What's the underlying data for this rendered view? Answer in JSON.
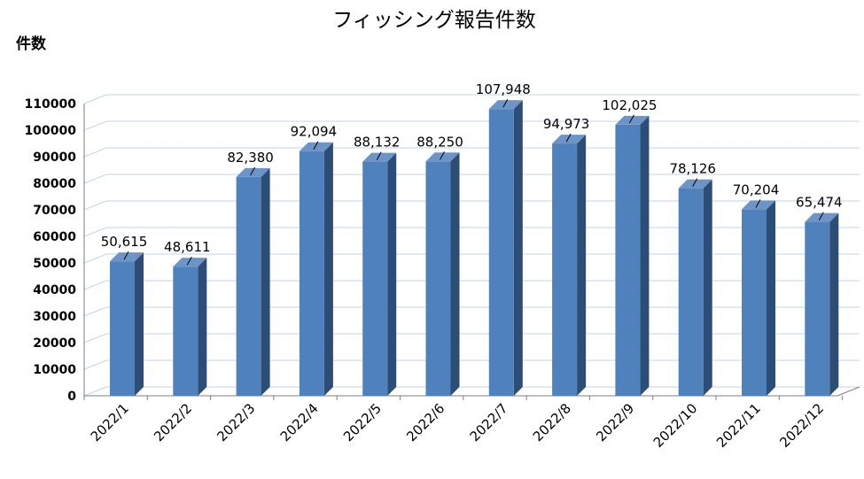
{
  "chart_data": {
    "type": "bar",
    "title": "フィッシング報告件数",
    "ylabel": "件数",
    "xlabel": "",
    "ylim": [
      0,
      110000
    ],
    "yticks": [
      0,
      10000,
      20000,
      30000,
      40000,
      50000,
      60000,
      70000,
      80000,
      90000,
      100000,
      110000
    ],
    "grid": true,
    "categories": [
      "2022/1",
      "2022/2",
      "2022/3",
      "2022/4",
      "2022/5",
      "2022/6",
      "2022/7",
      "2022/8",
      "2022/9",
      "2022/10",
      "2022/11",
      "2022/12"
    ],
    "values": [
      50615,
      48611,
      82380,
      92094,
      88132,
      88250,
      107948,
      94973,
      102025,
      78126,
      70204,
      65474
    ],
    "data_labels": [
      "50,615",
      "48,611",
      "82,380",
      "92,094",
      "88,132",
      "88,250",
      "107,948",
      "94,973",
      "102,025",
      "78,126",
      "70,204",
      "65,474"
    ],
    "colors": {
      "bar_front": "#4f81bd",
      "bar_side": "#2c4d75",
      "bar_top": "#6d94c7",
      "grid": "#c5d3e8"
    }
  }
}
